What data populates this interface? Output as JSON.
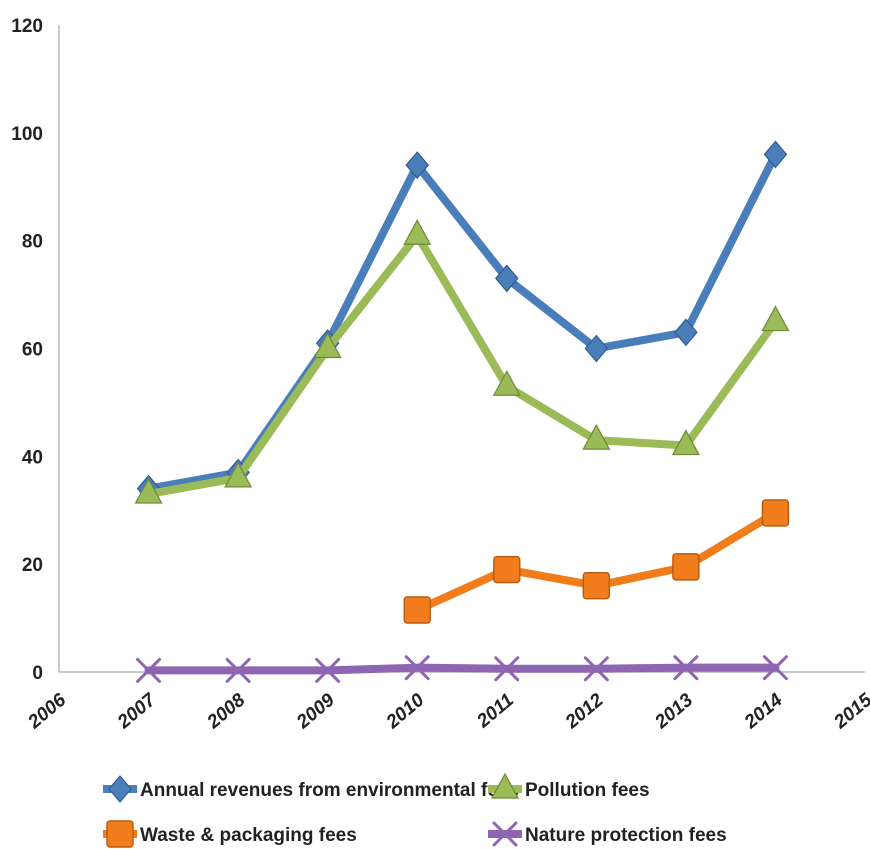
{
  "chart_data": {
    "type": "line",
    "title": "",
    "xlabel": "",
    "ylabel": "",
    "xlim": [
      2006,
      2015
    ],
    "ylim": [
      0,
      120
    ],
    "x_ticks": [
      "2006",
      "2007",
      "2008",
      "2009",
      "2010",
      "2011",
      "2012",
      "2013",
      "2014",
      "2015"
    ],
    "y_ticks": [
      "0",
      "20",
      "40",
      "60",
      "80",
      "100",
      "120"
    ],
    "grid": false,
    "legend_position": "bottom",
    "series": [
      {
        "name": "Annual revenues from environmental fees",
        "color": "#4a7ebb",
        "marker": "diamond",
        "x": [
          2007,
          2008,
          2009,
          2010,
          2011,
          2012,
          2013,
          2014
        ],
        "values": [
          34,
          37,
          61,
          94,
          73,
          60,
          63,
          96
        ]
      },
      {
        "name": "Pollution fees",
        "color": "#9bbb59",
        "marker": "triangle",
        "x": [
          2007,
          2008,
          2009,
          2010,
          2011,
          2012,
          2013,
          2014
        ],
        "values": [
          33,
          36,
          60,
          81,
          53,
          43,
          42,
          65
        ]
      },
      {
        "name": "Waste & packaging fees",
        "color": "#f07c1c",
        "marker": "square",
        "x": [
          2010,
          2011,
          2012,
          2013,
          2014
        ],
        "values": [
          11.5,
          19,
          16,
          19.5,
          29.5
        ]
      },
      {
        "name": "Nature protection fees",
        "color": "#8e65b3",
        "marker": "x",
        "x": [
          2007,
          2008,
          2009,
          2010,
          2011,
          2012,
          2013,
          2014
        ],
        "values": [
          0.3,
          0.3,
          0.3,
          0.8,
          0.6,
          0.6,
          0.8,
          0.8
        ]
      }
    ]
  }
}
